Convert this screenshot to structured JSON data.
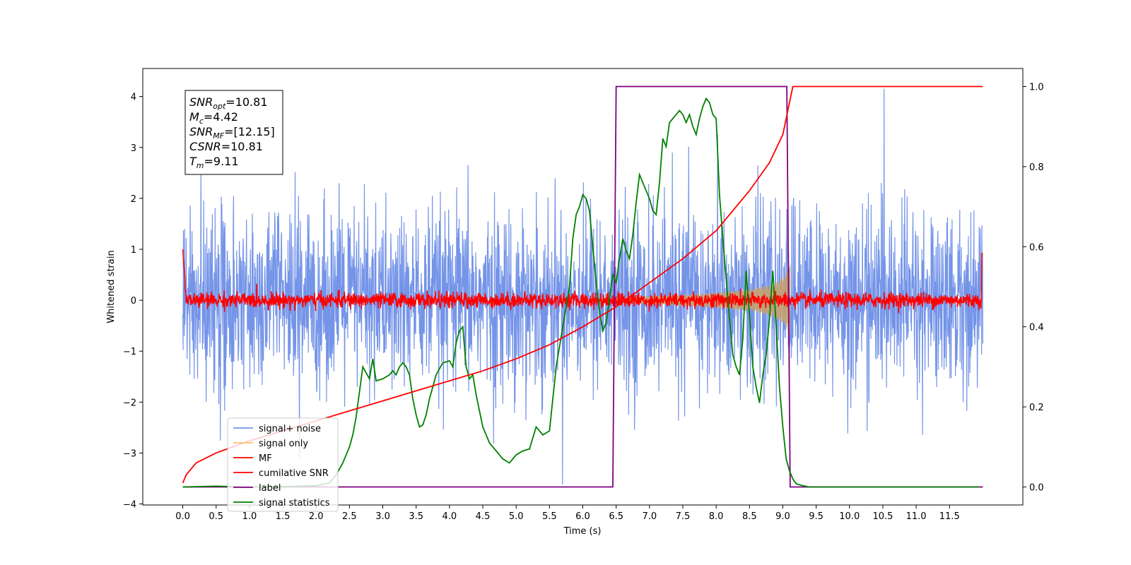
{
  "chart_data": {
    "type": "line",
    "xlabel": "Time (s)",
    "ylabel_left": "Whitened strain",
    "ylabel_right": "",
    "xlim": [
      -0.6,
      12.6
    ],
    "ylim_left": [
      -4.02,
      4.55
    ],
    "ylim_right": [
      -0.045,
      1.045
    ],
    "x_ticks": [
      "0.0",
      "0.5",
      "1.0",
      "1.5",
      "2.0",
      "2.5",
      "3.0",
      "3.5",
      "4.0",
      "4.5",
      "5.0",
      "5.5",
      "6.0",
      "6.5",
      "7.0",
      "7.5",
      "8.0",
      "8.5",
      "9.0",
      "9.5",
      "10.0",
      "10.5",
      "11.0",
      "11.5"
    ],
    "y_ticks_left": [
      "−4",
      "−3",
      "−2",
      "−1",
      "0",
      "1",
      "2",
      "3",
      "4"
    ],
    "y_ticks_right": [
      "0.0",
      "0.2",
      "0.4",
      "0.6",
      "0.8",
      "1.0"
    ],
    "grid": false,
    "legend_position": "lower-left",
    "info_box": {
      "lines": [
        {
          "sym": "SNR",
          "sub": "opt",
          "value": "=10.81"
        },
        {
          "sym": "M",
          "sub": "c",
          "value": "=4.42"
        },
        {
          "sym": "SNR",
          "sub": "MF",
          "value": "=[12.15]"
        },
        {
          "sym": "CSNR",
          "sub": "",
          "value": "=10.81"
        },
        {
          "sym": "T",
          "sub": "m",
          "value": "=9.11"
        }
      ]
    },
    "legend": [
      {
        "label": "signal+ noise",
        "color": "#7494e8"
      },
      {
        "label": "signal only",
        "color": "#ffbe73"
      },
      {
        "label": "MF",
        "color": "#ff0000"
      },
      {
        "label": "cumilative SNR",
        "color": "#ff0000"
      },
      {
        "label": "label",
        "color": "#800080"
      },
      {
        "label": "signal statistics",
        "color": "#008000"
      }
    ],
    "series": [
      {
        "name": "signal+ noise",
        "axis": "left",
        "color": "#7494e8",
        "x_start": 0.0,
        "x_end": 12.0,
        "approx_envelope": {
          "typical_abs": 2.2,
          "max": 4.15,
          "min": -3.62
        }
      },
      {
        "name": "signal only",
        "axis": "left",
        "color": "#ffbe73",
        "x_start": 6.0,
        "x_end": 9.11,
        "envelope_x": [
          6.0,
          6.5,
          7.0,
          7.5,
          8.0,
          8.5,
          8.8,
          9.0,
          9.11
        ],
        "envelope_amp": [
          0.03,
          0.05,
          0.08,
          0.11,
          0.15,
          0.22,
          0.3,
          0.45,
          0.72
        ]
      },
      {
        "name": "MF",
        "axis": "left",
        "color": "#ff0000",
        "x_start": 0.0,
        "x_end": 12.0,
        "approx_envelope": {
          "typical_abs": 0.1,
          "start_value": 1.0,
          "end_value": 0.92
        }
      },
      {
        "name": "cumilative SNR",
        "axis": "right",
        "color": "#ff0000",
        "x": [
          0.0,
          0.05,
          0.2,
          0.5,
          1.0,
          1.5,
          2.0,
          2.5,
          3.0,
          3.5,
          4.0,
          4.5,
          5.0,
          5.5,
          6.0,
          6.5,
          7.0,
          7.5,
          8.0,
          8.5,
          8.8,
          9.0,
          9.1,
          9.15,
          12.0
        ],
        "y": [
          0.01,
          0.03,
          0.06,
          0.085,
          0.115,
          0.14,
          0.165,
          0.19,
          0.215,
          0.24,
          0.265,
          0.29,
          0.32,
          0.355,
          0.4,
          0.45,
          0.51,
          0.57,
          0.64,
          0.74,
          0.81,
          0.88,
          0.96,
          1.0,
          1.0
        ]
      },
      {
        "name": "label",
        "axis": "right",
        "color": "#800080",
        "x": [
          0.0,
          6.45,
          6.5,
          9.06,
          9.11,
          12.0
        ],
        "y": [
          0.0,
          0.0,
          1.0,
          1.0,
          0.0,
          0.0
        ]
      },
      {
        "name": "signal statistics",
        "axis": "right",
        "color": "#008000",
        "x": [
          0.0,
          0.5,
          1.0,
          1.5,
          2.0,
          2.2,
          2.3,
          2.4,
          2.5,
          2.55,
          2.6,
          2.7,
          2.8,
          2.85,
          2.9,
          3.0,
          3.1,
          3.15,
          3.2,
          3.25,
          3.3,
          3.35,
          3.4,
          3.45,
          3.5,
          3.55,
          3.6,
          3.65,
          3.7,
          3.8,
          3.9,
          4.0,
          4.05,
          4.1,
          4.15,
          4.2,
          4.25,
          4.3,
          4.35,
          4.4,
          4.5,
          4.6,
          4.7,
          4.8,
          4.9,
          5.0,
          5.1,
          5.2,
          5.3,
          5.4,
          5.5,
          5.6,
          5.7,
          5.8,
          5.85,
          5.9,
          5.95,
          6.0,
          6.05,
          6.1,
          6.15,
          6.2,
          6.25,
          6.3,
          6.35,
          6.4,
          6.45,
          6.5,
          6.55,
          6.6,
          6.65,
          6.7,
          6.75,
          6.8,
          6.85,
          6.9,
          6.95,
          7.0,
          7.05,
          7.1,
          7.15,
          7.2,
          7.25,
          7.3,
          7.35,
          7.4,
          7.45,
          7.5,
          7.55,
          7.6,
          7.65,
          7.7,
          7.75,
          7.8,
          7.85,
          7.9,
          7.95,
          8.0,
          8.05,
          8.1,
          8.15,
          8.2,
          8.25,
          8.3,
          8.35,
          8.4,
          8.45,
          8.5,
          8.55,
          8.6,
          8.65,
          8.7,
          8.75,
          8.8,
          8.85,
          8.9,
          8.95,
          9.0,
          9.05,
          9.1,
          9.15,
          9.2,
          9.3,
          9.4,
          9.5,
          10.0,
          11.0,
          11.0,
          11.94
        ],
        "y": [
          0.0,
          0.002,
          0.0,
          0.001,
          0.003,
          0.01,
          0.03,
          0.06,
          0.1,
          0.13,
          0.175,
          0.3,
          0.27,
          0.32,
          0.265,
          0.27,
          0.28,
          0.29,
          0.28,
          0.3,
          0.31,
          0.3,
          0.28,
          0.22,
          0.18,
          0.15,
          0.155,
          0.18,
          0.22,
          0.28,
          0.31,
          0.315,
          0.3,
          0.36,
          0.39,
          0.4,
          0.3,
          0.27,
          0.28,
          0.23,
          0.15,
          0.11,
          0.09,
          0.07,
          0.06,
          0.08,
          0.09,
          0.095,
          0.15,
          0.13,
          0.14,
          0.3,
          0.4,
          0.5,
          0.62,
          0.68,
          0.7,
          0.73,
          0.72,
          0.69,
          0.6,
          0.51,
          0.44,
          0.39,
          0.41,
          0.47,
          0.53,
          0.51,
          0.57,
          0.62,
          0.59,
          0.57,
          0.63,
          0.71,
          0.78,
          0.76,
          0.74,
          0.72,
          0.69,
          0.68,
          0.76,
          0.87,
          0.85,
          0.91,
          0.92,
          0.93,
          0.94,
          0.93,
          0.91,
          0.93,
          0.9,
          0.88,
          0.92,
          0.95,
          0.97,
          0.96,
          0.93,
          0.92,
          0.73,
          0.62,
          0.52,
          0.42,
          0.33,
          0.3,
          0.28,
          0.37,
          0.54,
          0.43,
          0.3,
          0.25,
          0.21,
          0.28,
          0.33,
          0.42,
          0.54,
          0.4,
          0.25,
          0.15,
          0.07,
          0.04,
          0.02,
          0.008,
          0.003,
          0.0,
          0.0,
          0.0,
          0.0,
          0.0,
          0.0
        ]
      }
    ]
  }
}
